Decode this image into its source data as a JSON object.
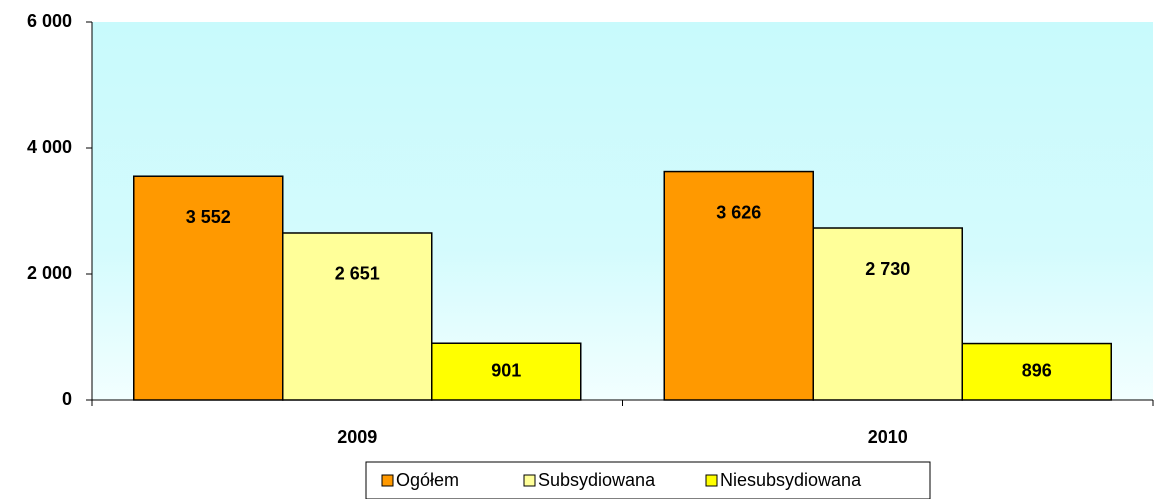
{
  "chart_data": {
    "type": "bar",
    "categories": [
      "2009",
      "2010"
    ],
    "series": [
      {
        "name": "Ogółem",
        "color": "#ff9900",
        "values": [
          3552,
          3626
        ],
        "value_labels": [
          "3 552",
          "3 626"
        ]
      },
      {
        "name": "Subsydiowana",
        "color": "#ffff99",
        "values": [
          2651,
          2730
        ],
        "value_labels": [
          "2 651",
          "2 730"
        ]
      },
      {
        "name": "Niesubsydiowana",
        "color": "#ffff00",
        "values": [
          901,
          896
        ],
        "value_labels": [
          "901",
          "896"
        ]
      }
    ],
    "ylim": [
      0,
      6000
    ],
    "yticks": [
      {
        "value": 0,
        "label": "0"
      },
      {
        "value": 2000,
        "label": "2 000"
      },
      {
        "value": 4000,
        "label": "4 000"
      },
      {
        "value": 6000,
        "label": "6 000"
      }
    ],
    "legend": "bottom"
  }
}
